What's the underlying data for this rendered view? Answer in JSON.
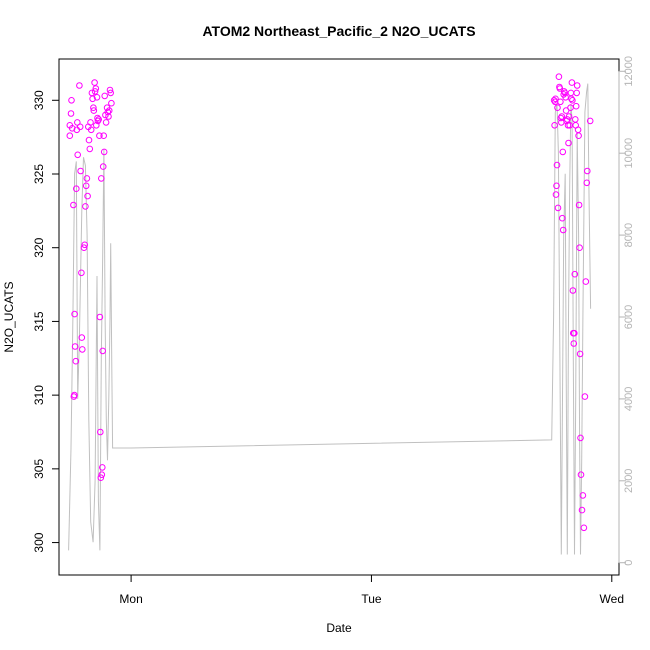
{
  "chart_data": {
    "type": "scatter",
    "title": "ATOM2 Northeast_Pacific_2 N2O_UCATS",
    "xlabel": "Date",
    "ylabel": "N2O_UCATS",
    "x_ticks": [
      "Mon",
      "Tue",
      "Wed"
    ],
    "x_tick_values": [
      0,
      1,
      2
    ],
    "xlim": [
      -0.3,
      2.03
    ],
    "ylim": [
      297.8,
      332.8
    ],
    "y_ticks": [
      300,
      305,
      310,
      315,
      320,
      325,
      330
    ],
    "y2lim": [
      -300,
      12300
    ],
    "y2_ticks": [
      0,
      2000,
      4000,
      6000,
      8000,
      10000,
      12000
    ],
    "colors": {
      "points": "#ff00ff",
      "altitude_line": "#c0c0c0",
      "axis": "#000000",
      "right_axis": "#b4b4b4"
    },
    "series": [
      {
        "values_xy": [
          [
            -0.255,
            328.3
          ],
          [
            -0.255,
            327.6
          ],
          [
            -0.25,
            329.1
          ],
          [
            -0.248,
            330.0
          ],
          [
            -0.245,
            328.1
          ],
          [
            -0.24,
            322.9
          ],
          [
            -0.238,
            309.9
          ],
          [
            -0.236,
            310.0
          ],
          [
            -0.235,
            315.5
          ],
          [
            -0.233,
            313.3
          ],
          [
            -0.23,
            312.3
          ],
          [
            -0.228,
            324.0
          ],
          [
            -0.226,
            328.0
          ],
          [
            -0.224,
            328.5
          ],
          [
            -0.222,
            326.3
          ],
          [
            -0.215,
            331.0
          ],
          [
            -0.212,
            328.2
          ],
          [
            -0.21,
            325.2
          ],
          [
            -0.207,
            318.3
          ],
          [
            -0.205,
            313.9
          ],
          [
            -0.203,
            313.1
          ],
          [
            -0.196,
            320.0
          ],
          [
            -0.193,
            320.2
          ],
          [
            -0.19,
            322.8
          ],
          [
            -0.187,
            324.2
          ],
          [
            -0.184,
            324.7
          ],
          [
            -0.181,
            323.5
          ],
          [
            -0.178,
            328.2
          ],
          [
            -0.175,
            327.3
          ],
          [
            -0.172,
            326.7
          ],
          [
            -0.169,
            328.5
          ],
          [
            -0.166,
            328.0
          ],
          [
            -0.163,
            330.5
          ],
          [
            -0.16,
            330.1
          ],
          [
            -0.157,
            329.5
          ],
          [
            -0.155,
            329.3
          ],
          [
            -0.152,
            331.2
          ],
          [
            -0.15,
            330.6
          ],
          [
            -0.147,
            330.8
          ],
          [
            -0.145,
            328.3
          ],
          [
            -0.142,
            330.2
          ],
          [
            -0.14,
            328.8
          ],
          [
            -0.138,
            328.6
          ],
          [
            -0.135,
            328.7
          ],
          [
            -0.132,
            327.6
          ],
          [
            -0.13,
            315.3
          ],
          [
            -0.128,
            307.5
          ],
          [
            -0.126,
            304.4
          ],
          [
            -0.124,
            324.7
          ],
          [
            -0.122,
            304.6
          ],
          [
            -0.12,
            305.1
          ],
          [
            -0.118,
            313.0
          ],
          [
            -0.116,
            325.5
          ],
          [
            -0.114,
            327.6
          ],
          [
            -0.112,
            326.5
          ],
          [
            -0.11,
            330.3
          ],
          [
            -0.107,
            329.0
          ],
          [
            -0.104,
            328.5
          ],
          [
            -0.1,
            329.5
          ],
          [
            -0.097,
            329.2
          ],
          [
            -0.094,
            328.9
          ],
          [
            -0.091,
            329.3
          ],
          [
            -0.088,
            330.7
          ],
          [
            -0.085,
            330.5
          ],
          [
            -0.082,
            329.8
          ],
          [
            1.76,
            330.0
          ],
          [
            1.762,
            328.3
          ],
          [
            1.764,
            329.9
          ],
          [
            1.766,
            330.1
          ],
          [
            1.768,
            323.6
          ],
          [
            1.77,
            324.2
          ],
          [
            1.772,
            325.6
          ],
          [
            1.774,
            329.5
          ],
          [
            1.776,
            322.7
          ],
          [
            1.78,
            331.6
          ],
          [
            1.782,
            330.9
          ],
          [
            1.784,
            330.8
          ],
          [
            1.786,
            329.9
          ],
          [
            1.788,
            328.8
          ],
          [
            1.79,
            328.5
          ],
          [
            1.792,
            328.9
          ],
          [
            1.794,
            322.0
          ],
          [
            1.796,
            326.5
          ],
          [
            1.798,
            321.2
          ],
          [
            1.8,
            330.4
          ],
          [
            1.802,
            330.6
          ],
          [
            1.805,
            330.5
          ],
          [
            1.808,
            330.2
          ],
          [
            1.81,
            329.3
          ],
          [
            1.812,
            328.6
          ],
          [
            1.815,
            328.7
          ],
          [
            1.818,
            328.3
          ],
          [
            1.82,
            327.1
          ],
          [
            1.822,
            328.9
          ],
          [
            1.825,
            328.3
          ],
          [
            1.828,
            329.5
          ],
          [
            1.83,
            330.5
          ],
          [
            1.832,
            330.1
          ],
          [
            1.834,
            331.2
          ],
          [
            1.836,
            330.0
          ],
          [
            1.838,
            317.1
          ],
          [
            1.84,
            314.2
          ],
          [
            1.842,
            313.5
          ],
          [
            1.844,
            314.2
          ],
          [
            1.846,
            318.2
          ],
          [
            1.848,
            328.7
          ],
          [
            1.85,
            328.3
          ],
          [
            1.852,
            329.6
          ],
          [
            1.854,
            330.5
          ],
          [
            1.856,
            331.0
          ],
          [
            1.86,
            328.0
          ],
          [
            1.862,
            327.6
          ],
          [
            1.864,
            322.9
          ],
          [
            1.866,
            320.0
          ],
          [
            1.868,
            312.8
          ],
          [
            1.87,
            307.1
          ],
          [
            1.872,
            304.6
          ],
          [
            1.876,
            302.2
          ],
          [
            1.88,
            303.2
          ],
          [
            1.884,
            301.0
          ],
          [
            1.888,
            309.9
          ],
          [
            1.892,
            317.7
          ],
          [
            1.896,
            324.4
          ],
          [
            1.898,
            325.2
          ],
          [
            1.91,
            328.6
          ]
        ]
      },
      {
        "axis": "right",
        "values_xy": [
          [
            -0.26,
            300
          ],
          [
            -0.25,
            2800
          ],
          [
            -0.242,
            6000
          ],
          [
            -0.235,
            9500
          ],
          [
            -0.228,
            9800
          ],
          [
            -0.222,
            4000
          ],
          [
            -0.215,
            5500
          ],
          [
            -0.205,
            8600
          ],
          [
            -0.198,
            9900
          ],
          [
            -0.19,
            9700
          ],
          [
            -0.183,
            8000
          ],
          [
            -0.176,
            3500
          ],
          [
            -0.168,
            1000
          ],
          [
            -0.158,
            500
          ],
          [
            -0.15,
            2000
          ],
          [
            -0.142,
            7000
          ],
          [
            -0.136,
            1500
          ],
          [
            -0.13,
            300
          ],
          [
            -0.124,
            5000
          ],
          [
            -0.118,
            7500
          ],
          [
            -0.113,
            10100
          ],
          [
            -0.108,
            6000
          ],
          [
            -0.103,
            3500
          ],
          [
            -0.098,
            2500
          ],
          [
            -0.093,
            4000
          ],
          [
            -0.088,
            6000
          ],
          [
            -0.085,
            7800
          ],
          [
            -0.08,
            4500
          ],
          [
            -0.077,
            2800
          ],
          [
            0.0,
            2800
          ],
          [
            1.75,
            3000
          ],
          [
            1.758,
            6000
          ],
          [
            1.765,
            11000
          ],
          [
            1.772,
            11200
          ],
          [
            1.778,
            10000
          ],
          [
            1.784,
            5000
          ],
          [
            1.79,
            200
          ],
          [
            1.795,
            4000
          ],
          [
            1.8,
            8000
          ],
          [
            1.806,
            9500
          ],
          [
            1.81,
            5000
          ],
          [
            1.815,
            200
          ],
          [
            1.82,
            6000
          ],
          [
            1.825,
            9200
          ],
          [
            1.83,
            11200
          ],
          [
            1.835,
            10800
          ],
          [
            1.84,
            5000
          ],
          [
            1.845,
            200
          ],
          [
            1.85,
            4000
          ],
          [
            1.856,
            10500
          ],
          [
            1.862,
            8000
          ],
          [
            1.866,
            3000
          ],
          [
            1.87,
            200
          ],
          [
            1.875,
            2500
          ],
          [
            1.88,
            6000
          ],
          [
            1.888,
            11000
          ],
          [
            1.895,
            11500
          ],
          [
            1.9,
            11700
          ],
          [
            1.905,
            9000
          ],
          [
            1.912,
            6200
          ]
        ]
      }
    ]
  }
}
